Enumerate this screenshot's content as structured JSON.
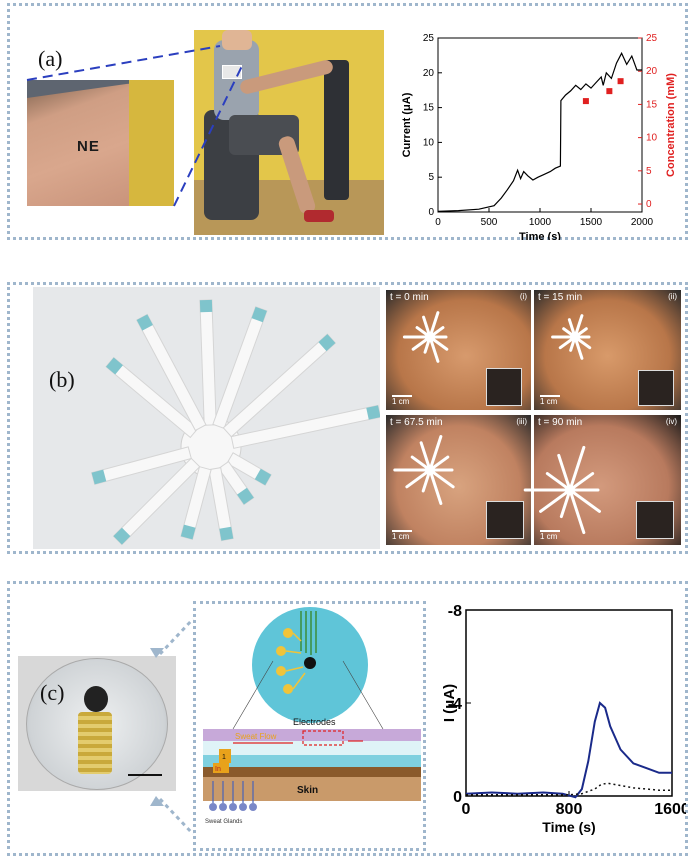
{
  "panels": {
    "a": {
      "label": "(a)",
      "tattoo_text": "NE"
    },
    "b": {
      "label": "(b)",
      "times": [
        "t = 0 min",
        "t = 15 min",
        "t = 67.5 min",
        "t = 90 min"
      ],
      "roman": [
        "(i)",
        "(ii)",
        "(iii)",
        "(iv)"
      ],
      "scale": "1 cm"
    },
    "c": {
      "label": "(c)",
      "diagram": {
        "electrodes": "Electrodes",
        "sweat_flow": "Sweat Flow",
        "skin": "Skin",
        "sweat_glands": "Sweat Glands",
        "in": "In",
        "one": "1"
      }
    }
  },
  "colors": {
    "border": "#9fb6cc",
    "red_axis": "#e02020",
    "blue_line": "#1a2a8a"
  },
  "chart_data": [
    {
      "type": "line",
      "title": "",
      "xlabel": "Time (s)",
      "ylabel": "Current (μA)",
      "y2label": "Concentration (mM)",
      "xlim": [
        0,
        2000
      ],
      "ylim": [
        0,
        25
      ],
      "y2lim": [
        -1.2,
        25
      ],
      "xticks": [
        "0",
        "500",
        "1000",
        "1500",
        "2000"
      ],
      "yticks": [
        "0",
        "5",
        "10",
        "15",
        "20",
        "25"
      ],
      "y2ticks": [
        "0",
        "5",
        "10",
        "15",
        "20",
        "25"
      ],
      "series": [
        {
          "x": [
            0,
            200,
            400,
            550,
            620,
            680,
            740,
            780,
            810,
            840,
            880,
            930,
            980,
            1040,
            1100,
            1150,
            1200,
            1205,
            1250,
            1300,
            1350,
            1400,
            1450,
            1500,
            1550,
            1600,
            1620,
            1650,
            1700,
            1750,
            1800,
            1850,
            1900,
            1950,
            2000
          ],
          "y": [
            0.1,
            0.2,
            0.4,
            0.9,
            2.0,
            3.2,
            4.5,
            6.0,
            4.8,
            5.8,
            5.2,
            4.6,
            5.0,
            5.4,
            5.8,
            6.3,
            6.6,
            16.0,
            16.8,
            17.4,
            18.2,
            17.6,
            18.4,
            17.8,
            18.6,
            19.4,
            18.2,
            20.0,
            19.2,
            21.4,
            22.8,
            21.2,
            22.4,
            20.4,
            20.4
          ]
        },
        {
          "type": "scatter",
          "x": [
            1450,
            1680,
            1790
          ],
          "y": [
            15.5,
            17.0,
            18.5
          ]
        }
      ]
    },
    {
      "type": "line",
      "title": "",
      "xlabel": "Time (s)",
      "ylabel": "I (μA)",
      "xlim": [
        0,
        1600
      ],
      "ylim": [
        0,
        -8
      ],
      "xticks": [
        "0",
        "800",
        "1600"
      ],
      "yticks": [
        "0",
        "-4",
        "-8"
      ],
      "series": [
        {
          "x": [
            0,
            200,
            400,
            600,
            750,
            850,
            900,
            950,
            1000,
            1040,
            1080,
            1120,
            1200,
            1300,
            1400,
            1500,
            1600
          ],
          "y": [
            -0.1,
            -0.15,
            -0.1,
            -0.15,
            -0.1,
            0.05,
            -0.3,
            -1.5,
            -3.2,
            -4.0,
            -3.8,
            -3.0,
            -2.0,
            -1.4,
            -1.2,
            -1.0,
            -1.0
          ]
        },
        {
          "x": [
            0,
            400,
            800,
            900,
            1000,
            1050,
            1100,
            1200,
            1300,
            1400,
            1500,
            1600
          ],
          "y": [
            -0.05,
            -0.05,
            -0.05,
            -0.1,
            -0.3,
            -0.5,
            -0.55,
            -0.45,
            -0.35,
            -0.3,
            -0.25,
            -0.25
          ]
        }
      ]
    }
  ]
}
